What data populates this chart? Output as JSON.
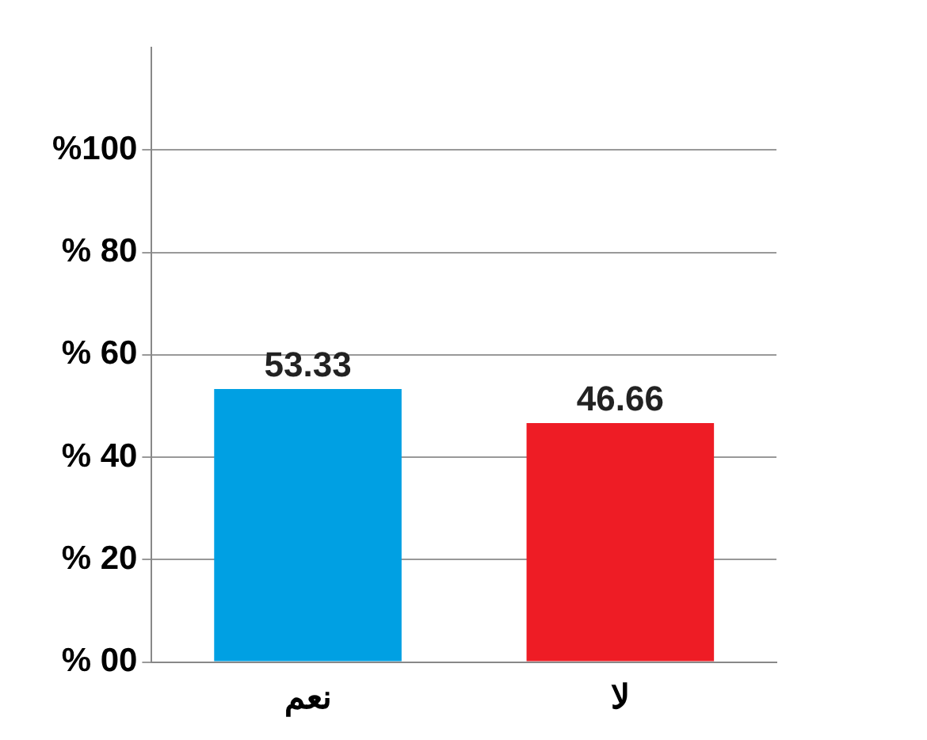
{
  "chart_data": {
    "type": "bar",
    "categories": [
      "نعم",
      "لا"
    ],
    "values": [
      53.33,
      46.66
    ],
    "colors": [
      "#00a0e3",
      "#ee1c25"
    ],
    "ylim": [
      0,
      120
    ],
    "yticks": [
      {
        "value": 0,
        "label": "% 00"
      },
      {
        "value": 20,
        "label": "% 20"
      },
      {
        "value": 40,
        "label": "% 40"
      },
      {
        "value": 60,
        "label": "% 60"
      },
      {
        "value": 80,
        "label": "% 80"
      },
      {
        "value": 100,
        "label": "%100"
      }
    ],
    "grid": "y",
    "data_labels": true,
    "legend": false
  }
}
